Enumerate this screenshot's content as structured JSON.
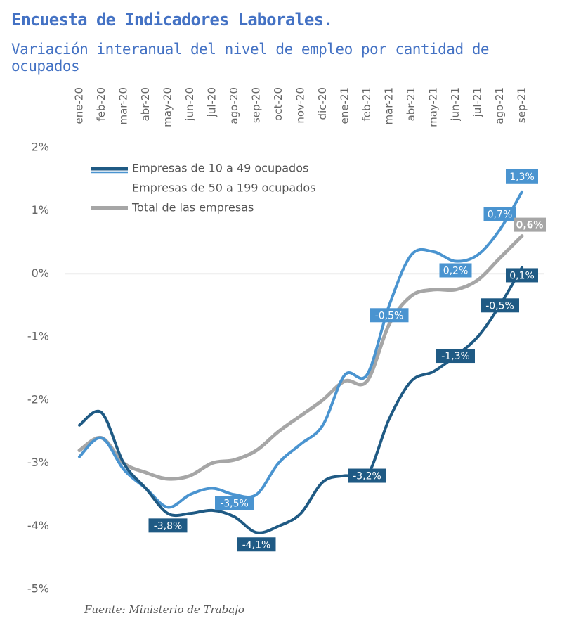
{
  "header": {
    "title": "Encuesta de Indicadores Laborales.",
    "subtitle": "Variación interanual del nivel de empleo por cantidad de ocupados"
  },
  "footer": {
    "source": "Fuente: Ministerio de Trabajo"
  },
  "chart_data": {
    "type": "line",
    "title": "Encuesta de Indicadores Laborales.",
    "subtitle": "Variación interanual del nivel de empleo por cantidad de ocupados",
    "categories": [
      "ene-20",
      "feb-20",
      "mar-20",
      "abr-20",
      "may-20",
      "jun-20",
      "jul-20",
      "ago-20",
      "sep-20",
      "oct-20",
      "nov-20",
      "dic-20",
      "ene-21",
      "feb-21",
      "mar-21",
      "abr-21",
      "may-21",
      "jun-21",
      "jul-21",
      "ago-21",
      "sep-21"
    ],
    "ylim": [
      -5,
      2
    ],
    "yticks": [
      2,
      1,
      0,
      -1,
      -2,
      -3,
      -4,
      -5
    ],
    "ytick_labels": [
      "2%",
      "1%",
      "0%",
      "-1%",
      "-2%",
      "-3%",
      "-4%",
      "-5%"
    ],
    "legend_position": "top-left",
    "series": [
      {
        "name": "Empresas de 10 a 49 ocupados",
        "color": "#1f5a84",
        "values": [
          -2.4,
          -2.2,
          -3.0,
          -3.4,
          -3.8,
          -3.8,
          -3.75,
          -3.85,
          -4.1,
          -4.0,
          -3.8,
          -3.3,
          -3.2,
          -3.2,
          -2.3,
          -1.7,
          -1.55,
          -1.3,
          -1.0,
          -0.5,
          0.1
        ],
        "data_labels": [
          {
            "index": 4,
            "text": "-3,8%"
          },
          {
            "index": 8,
            "text": "-4,1%"
          },
          {
            "index": 13,
            "text": "-3,2%"
          },
          {
            "index": 17,
            "text": "-1,3%"
          },
          {
            "index": 19,
            "text": "-0,5%"
          },
          {
            "index": 20,
            "text": "0,1%"
          }
        ]
      },
      {
        "name": "Empresas de 50 a 199 ocupados",
        "color": "#4a94d0",
        "values": [
          -2.9,
          -2.6,
          -3.1,
          -3.4,
          -3.7,
          -3.5,
          -3.4,
          -3.5,
          -3.5,
          -3.0,
          -2.7,
          -2.4,
          -1.6,
          -1.6,
          -0.5,
          0.3,
          0.35,
          0.2,
          0.3,
          0.7,
          1.3
        ],
        "data_labels": [
          {
            "index": 7,
            "text": "-3,5%"
          },
          {
            "index": 14,
            "text": "-0,5%"
          },
          {
            "index": 17,
            "text": "0,2%"
          },
          {
            "index": 19,
            "text": "0,7%"
          },
          {
            "index": 20,
            "text": "1,3%"
          }
        ]
      },
      {
        "name": "Total de las empresas",
        "color": "#a6a6a6",
        "values": [
          -2.8,
          -2.6,
          -3.0,
          -3.15,
          -3.25,
          -3.2,
          -3.0,
          -2.95,
          -2.8,
          -2.5,
          -2.25,
          -2.0,
          -1.7,
          -1.7,
          -0.8,
          -0.35,
          -0.25,
          -0.25,
          -0.1,
          0.25,
          0.6
        ],
        "data_labels": [
          {
            "index": 20,
            "text": "0,6%"
          }
        ]
      }
    ]
  }
}
